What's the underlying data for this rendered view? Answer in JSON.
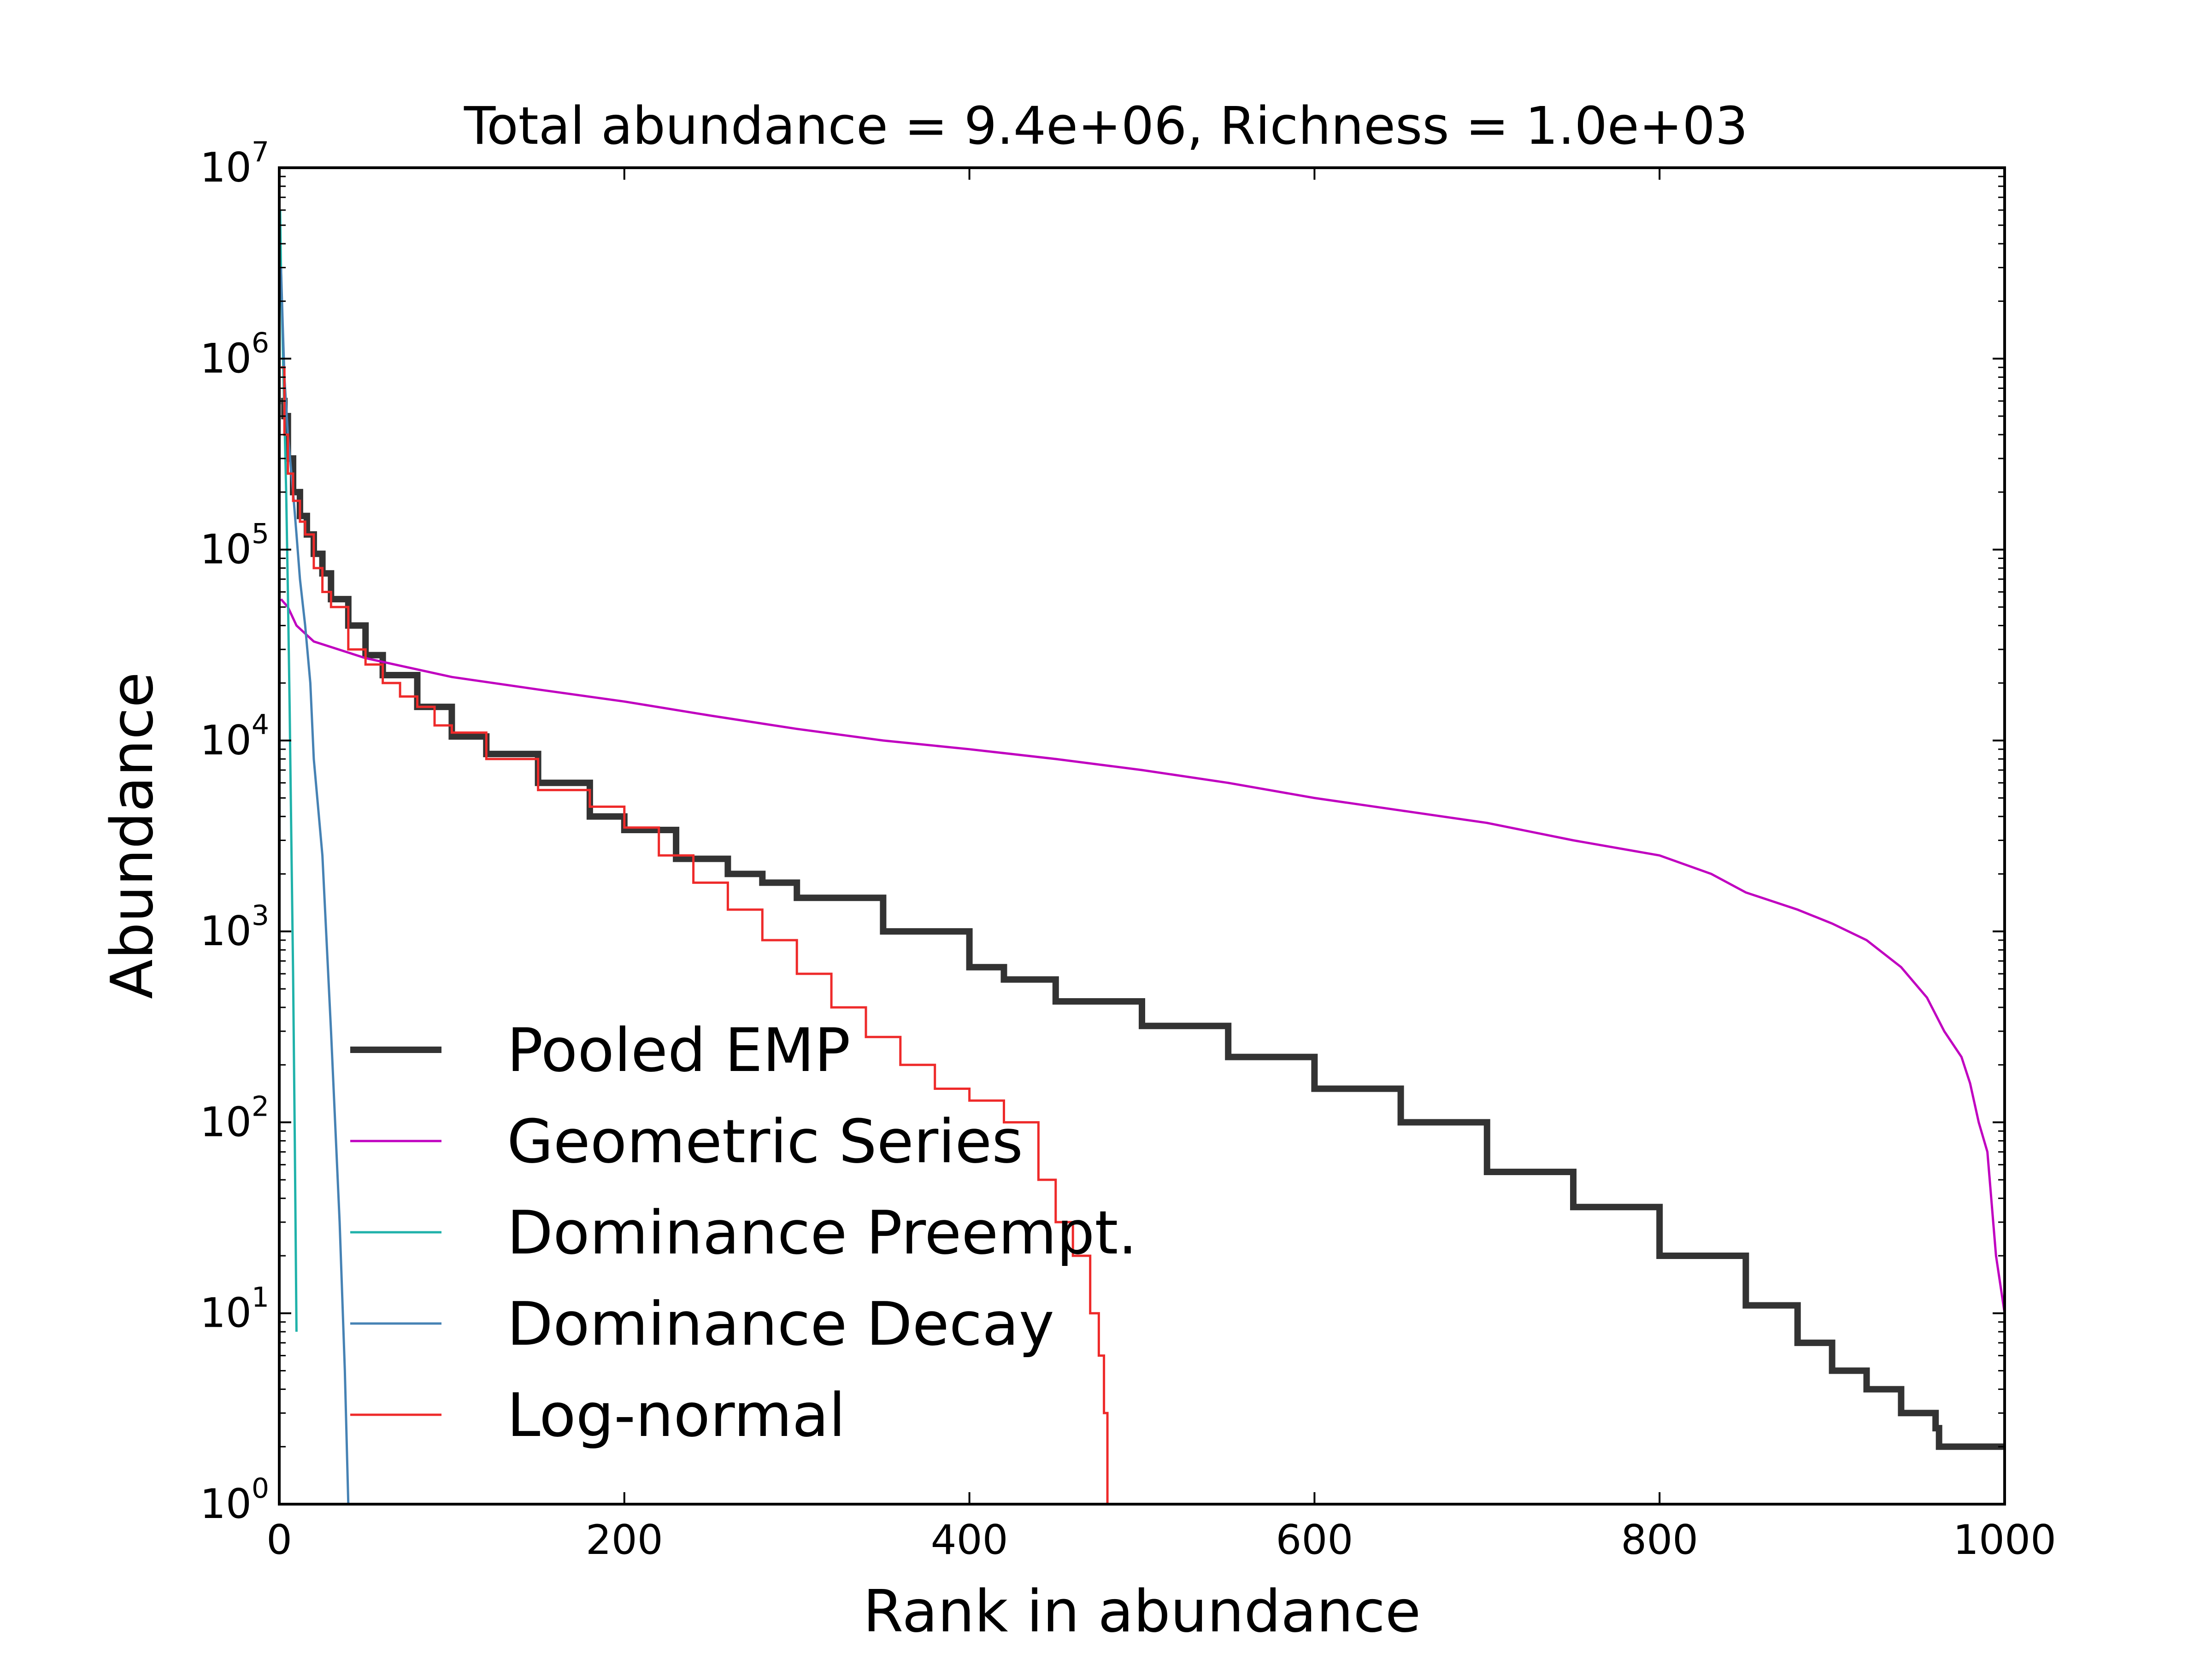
{
  "chart_data": {
    "type": "line",
    "title": "Total abundance = 9.4e+06, Richness = 1.0e+03",
    "xlabel": "Rank in abundance",
    "ylabel": "Abundance",
    "xlim": [
      0,
      1000
    ],
    "ylim": [
      1,
      10000000
    ],
    "yscale": "log",
    "grid": false,
    "legend_position": "lower-left",
    "xticks": [
      {
        "value": 0,
        "label": "0"
      },
      {
        "value": 200,
        "label": "200"
      },
      {
        "value": 400,
        "label": "400"
      },
      {
        "value": 600,
        "label": "600"
      },
      {
        "value": 800,
        "label": "800"
      },
      {
        "value": 1000,
        "label": "1000"
      }
    ],
    "yticks": [
      {
        "value": 1,
        "base": "10",
        "exp": "0"
      },
      {
        "value": 10,
        "base": "10",
        "exp": "1"
      },
      {
        "value": 100,
        "base": "10",
        "exp": "2"
      },
      {
        "value": 1000,
        "base": "10",
        "exp": "3"
      },
      {
        "value": 10000,
        "base": "10",
        "exp": "4"
      },
      {
        "value": 100000,
        "base": "10",
        "exp": "5"
      },
      {
        "value": 1000000,
        "base": "10",
        "exp": "6"
      },
      {
        "value": 10000000,
        "base": "10",
        "exp": "7"
      }
    ],
    "series": [
      {
        "name": "Pooled EMP",
        "color": "#333333",
        "step": true,
        "x": [
          1,
          3,
          5,
          8,
          12,
          16,
          20,
          25,
          30,
          40,
          50,
          60,
          80,
          100,
          120,
          150,
          180,
          200,
          230,
          260,
          280,
          300,
          350,
          400,
          420,
          450,
          500,
          550,
          600,
          650,
          700,
          750,
          800,
          850,
          880,
          900,
          920,
          940,
          950,
          960,
          962,
          1000
        ],
        "y": [
          600000,
          500000,
          300000,
          200000,
          150000,
          120000,
          95000,
          75000,
          55000,
          40000,
          28000,
          22000,
          15000,
          10500,
          8500,
          6000,
          4000,
          3400,
          2400,
          2000,
          1800,
          1500,
          1000,
          650,
          560,
          430,
          320,
          220,
          150,
          100,
          55,
          36,
          20,
          11,
          7,
          5,
          4,
          3,
          3,
          2.5,
          2,
          2
        ]
      },
      {
        "name": "Geometric Series",
        "color": "#c000c0",
        "step": false,
        "x": [
          1,
          5,
          10,
          20,
          50,
          100,
          150,
          200,
          250,
          300,
          350,
          400,
          450,
          500,
          550,
          600,
          650,
          700,
          750,
          800,
          830,
          850,
          880,
          900,
          920,
          940,
          955,
          965,
          975,
          980,
          985,
          990,
          995,
          1000
        ],
        "y": [
          55000,
          50000,
          40000,
          33000,
          27000,
          21500,
          18500,
          16000,
          13500,
          11500,
          10000,
          9000,
          8000,
          7000,
          6000,
          5000,
          4300,
          3700,
          3000,
          2500,
          2000,
          1600,
          1300,
          1100,
          900,
          650,
          450,
          300,
          220,
          160,
          100,
          70,
          20,
          10
        ]
      },
      {
        "name": "Dominance Preempt.",
        "color": "#20b2aa",
        "step": false,
        "x": [
          0.5,
          1,
          2,
          3,
          4,
          5,
          6,
          7,
          8,
          9,
          10
        ],
        "y": [
          6000000,
          3000000,
          1200000,
          500000,
          200000,
          60000,
          15000,
          3000,
          600,
          80,
          8
        ]
      },
      {
        "name": "Dominance Decay",
        "color": "#4682b4",
        "step": false,
        "x": [
          1,
          2,
          3,
          5,
          8,
          10,
          12,
          15,
          18,
          20,
          25,
          30,
          35,
          38,
          40
        ],
        "y": [
          3000000,
          1500000,
          800000,
          400000,
          200000,
          120000,
          70000,
          40000,
          20000,
          8000,
          2500,
          300,
          30,
          5,
          1
        ]
      },
      {
        "name": "Log-normal",
        "color": "#ee2a2a",
        "step": true,
        "x": [
          1,
          3,
          5,
          8,
          12,
          15,
          20,
          25,
          30,
          40,
          50,
          60,
          70,
          80,
          90,
          100,
          120,
          150,
          180,
          200,
          220,
          240,
          260,
          280,
          300,
          320,
          340,
          360,
          380,
          400,
          420,
          440,
          450,
          460,
          470,
          475,
          478,
          480
        ],
        "y": [
          900000,
          400000,
          250000,
          180000,
          140000,
          120000,
          80000,
          60000,
          50000,
          30000,
          25000,
          20000,
          17000,
          15000,
          12000,
          11000,
          8000,
          5500,
          4500,
          3500,
          2500,
          1800,
          1300,
          900,
          600,
          400,
          280,
          200,
          150,
          130,
          100,
          50,
          30,
          20,
          10,
          6,
          3,
          1
        ]
      }
    ]
  }
}
